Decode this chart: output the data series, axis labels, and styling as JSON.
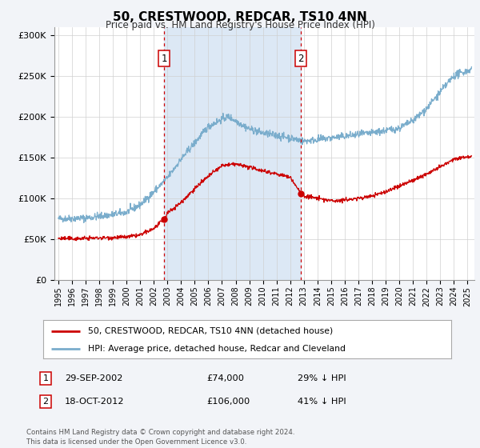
{
  "title": "50, CRESTWOOD, REDCAR, TS10 4NN",
  "subtitle": "Price paid vs. HM Land Registry's House Price Index (HPI)",
  "background_color": "#f2f4f8",
  "plot_bg_color": "#ffffff",
  "ylim": [
    0,
    310000
  ],
  "yticks": [
    0,
    50000,
    100000,
    150000,
    200000,
    250000,
    300000
  ],
  "ytick_labels": [
    "£0",
    "£50K",
    "£100K",
    "£150K",
    "£200K",
    "£250K",
    "£300K"
  ],
  "xlim_start": 1994.7,
  "xlim_end": 2025.5,
  "xtick_years": [
    1995,
    1996,
    1997,
    1998,
    1999,
    2000,
    2001,
    2002,
    2003,
    2004,
    2005,
    2006,
    2007,
    2008,
    2009,
    2010,
    2011,
    2012,
    2013,
    2014,
    2015,
    2016,
    2017,
    2018,
    2019,
    2020,
    2021,
    2022,
    2023,
    2024,
    2025
  ],
  "sale1_x": 2002.75,
  "sale1_y": 74000,
  "sale2_x": 2012.79,
  "sale2_y": 106000,
  "sale1_date": "29-SEP-2002",
  "sale1_price": "£74,000",
  "sale1_hpi": "29% ↓ HPI",
  "sale2_date": "18-OCT-2012",
  "sale2_price": "£106,000",
  "sale2_hpi": "41% ↓ HPI",
  "red_line_color": "#cc0000",
  "blue_line_color": "#7aadcc",
  "shade_color": "#dce8f5",
  "legend1_label": "50, CRESTWOOD, REDCAR, TS10 4NN (detached house)",
  "legend2_label": "HPI: Average price, detached house, Redcar and Cleveland",
  "footer": "Contains HM Land Registry data © Crown copyright and database right 2024.\nThis data is licensed under the Open Government Licence v3.0."
}
